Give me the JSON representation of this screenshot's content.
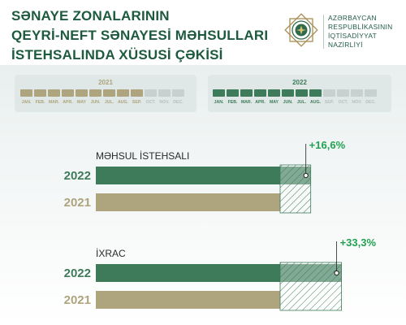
{
  "title": {
    "line1": "SƏNAYE ZONALARININ",
    "line2": "QEYRİ-NEFT SƏNAYESİ MƏHSULLARI",
    "line3": "İSTEHSALINDA XÜSUSİ ÇƏKİSİ"
  },
  "ministry": {
    "line1": "AZƏRBAYCAN",
    "line2": "RESPUBLİKASININ",
    "line3": "İQTİSADİYYAT",
    "line4": "NAZİRLİYİ"
  },
  "logo_icon": "eight-pointed-star-emblem-icon",
  "colors": {
    "green": "#3e7b5a",
    "green_dark": "#2f6a4c",
    "green_text": "#23a152",
    "tan": "#aea47e",
    "inactive": "#c7d1cf",
    "title": "#1e5a3f"
  },
  "periods": [
    {
      "year": "2021",
      "color": "#aea47e",
      "active_count": 9,
      "months": [
        "JAN.",
        "FEB.",
        "MAR.",
        "APR.",
        "MAY",
        "JUN.",
        "JUL.",
        "AUG.",
        "SEP.",
        "OCT.",
        "NOV.",
        "DEC."
      ]
    },
    {
      "year": "2022",
      "color": "#3e7b5a",
      "active_count": 8,
      "months": [
        "JAN.",
        "FEB.",
        "MAR.",
        "APR.",
        "MAY",
        "JUN.",
        "JUL.",
        "AUG.",
        "SEP.",
        "OCT.",
        "NOV.",
        "DEC."
      ]
    }
  ],
  "chart_data": [
    {
      "type": "bar",
      "orientation": "horizontal",
      "title": "MƏHSUL İSTEHSALI",
      "categories": [
        "2022",
        "2021"
      ],
      "values": [
        116.6,
        100
      ],
      "change_label": "+16,6%",
      "colors": [
        "#3e7b5a",
        "#aea47e"
      ]
    },
    {
      "type": "bar",
      "orientation": "horizontal",
      "title": "İXRAC",
      "categories": [
        "2022",
        "2021"
      ],
      "values": [
        133.3,
        100
      ],
      "change_label": "+33,3%",
      "colors": [
        "#3e7b5a",
        "#aea47e"
      ]
    }
  ]
}
